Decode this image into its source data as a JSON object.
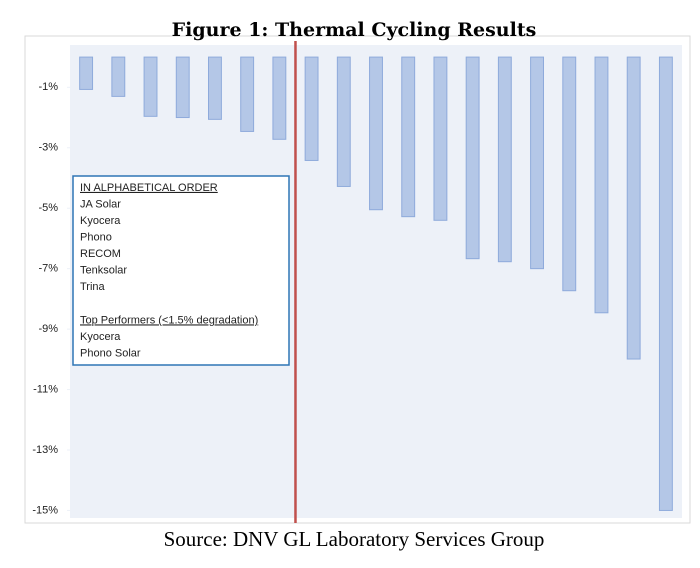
{
  "chart_data": {
    "type": "bar",
    "title": "Figure 1: Thermal Cycling Results",
    "source": "Source: DNV GL Laboratory Services Group",
    "categories": [
      null,
      null,
      null,
      null,
      null,
      null,
      null,
      null,
      null,
      null,
      null,
      null,
      null,
      null,
      null,
      null,
      null,
      null,
      null
    ],
    "values": [
      -1.07,
      -1.3,
      -1.96,
      -2.0,
      -2.06,
      -2.46,
      -2.72,
      -3.42,
      -4.28,
      -5.05,
      -5.28,
      -5.4,
      -6.67,
      -6.77,
      -7.0,
      -7.73,
      -8.46,
      -9.99,
      -15.0
    ],
    "color": "#b4c7e7",
    "ylim": [
      -15.25,
      0.4
    ],
    "yticks": [
      {
        "value": -1,
        "label": "-1%"
      },
      {
        "value": -3,
        "label": "-3%"
      },
      {
        "value": -5,
        "label": "-5%"
      },
      {
        "value": -7,
        "label": "-7%"
      },
      {
        "value": -9,
        "label": "-9%"
      },
      {
        "value": -11,
        "label": "-11%"
      },
      {
        "value": -13,
        "label": "-13%"
      },
      {
        "value": -15,
        "label": "-15%"
      }
    ],
    "divider": {
      "after_category": 6,
      "color": "#c0504d"
    },
    "annotation": {
      "heading": "IN ALPHABETICAL ORDER",
      "items": [
        "JA Solar",
        "Kyocera",
        "Phono",
        "RECOM",
        "Tenksolar",
        "Trina"
      ],
      "subheading": "Top Performers (<1.5% degradation)",
      "subitems": [
        "Kyocera",
        "Phono Solar"
      ]
    }
  }
}
